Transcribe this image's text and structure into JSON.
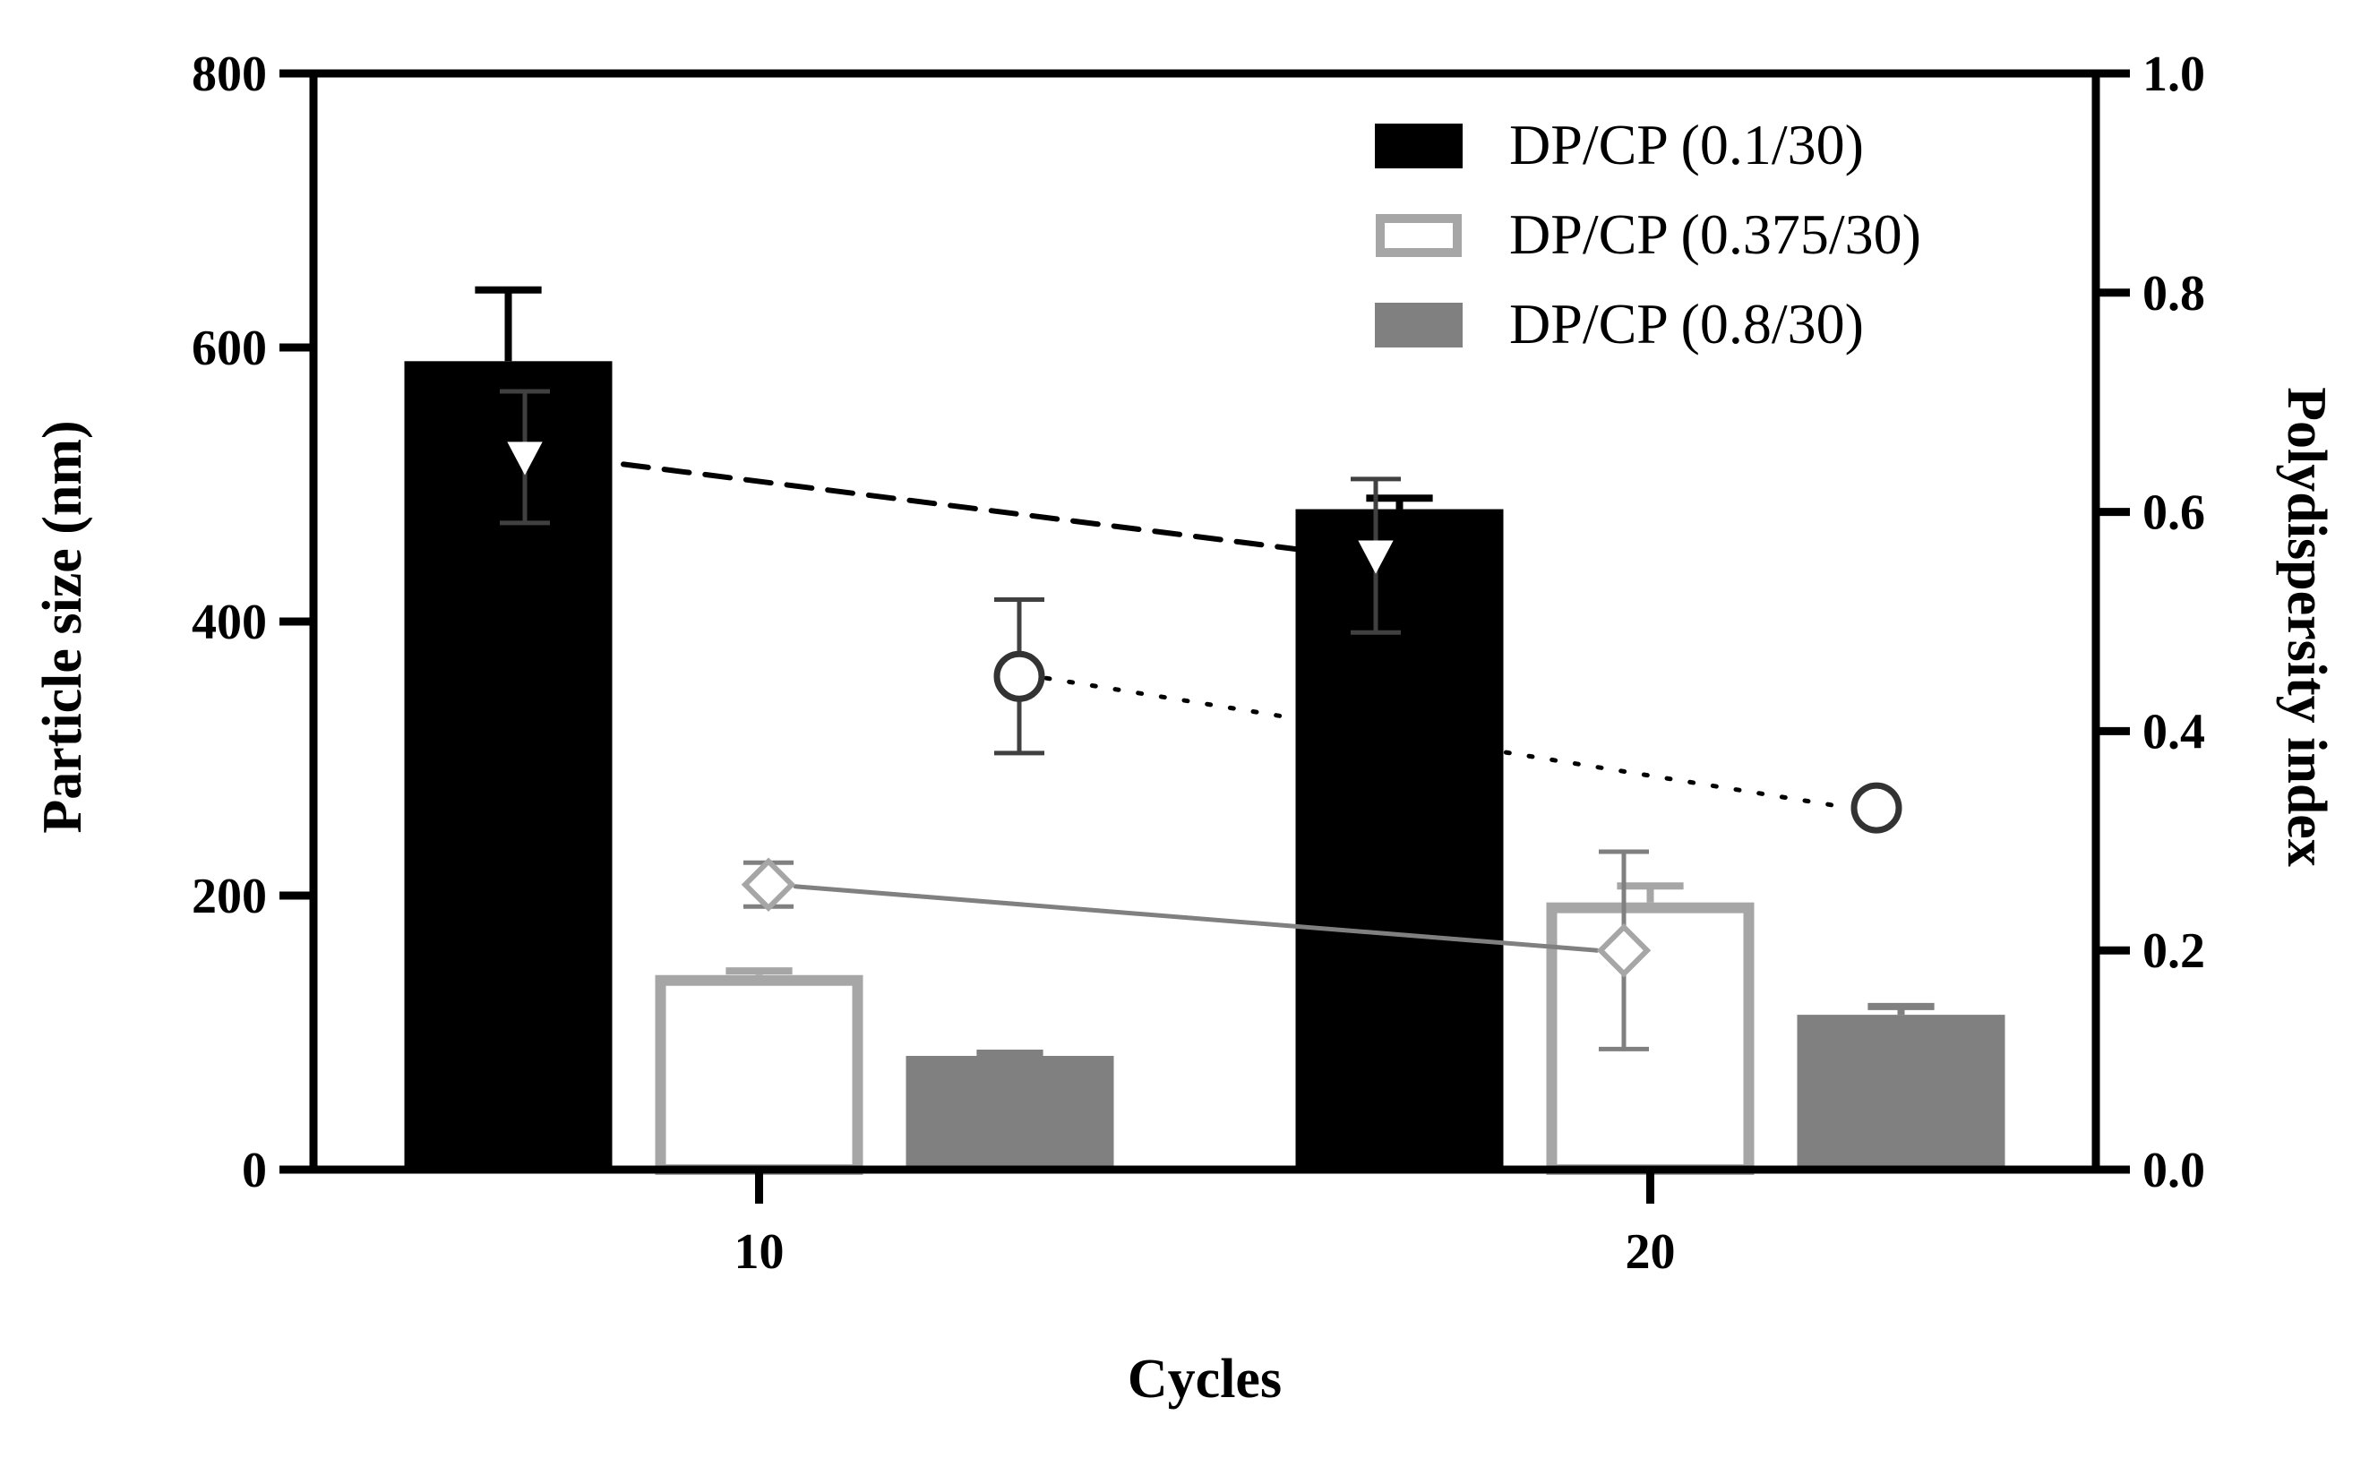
{
  "chart_data": {
    "type": "bar",
    "categories": [
      "10",
      "20"
    ],
    "xlabel": "Cycles",
    "ylabel": "Particle size (nm)",
    "y2label": "Polydispersity index",
    "ylim": [
      0,
      800
    ],
    "y2lim": [
      0,
      1.0
    ],
    "yticks": [
      "0",
      "200",
      "400",
      "600",
      "800"
    ],
    "y2ticks": [
      "0.0",
      "0.2",
      "0.4",
      "0.6",
      "0.8",
      "1.0"
    ],
    "legend_position": "top-right",
    "series": [
      {
        "name": "DP/CP (0.1/30)",
        "style": "filled",
        "color": "#000000",
        "values": [
          590,
          482
        ],
        "errors": [
          52,
          8
        ],
        "pdi": [
          0.65,
          0.56
        ],
        "pdi_errors": [
          0.06,
          0.07
        ],
        "pdi_marker": "triangle-down",
        "pdi_line": "dashed"
      },
      {
        "name": "DP/CP (0.375/30)",
        "style": "outline",
        "color": "#a6a6a6",
        "values": [
          142,
          195
        ],
        "errors": [
          3,
          12
        ],
        "pdi": [
          0.26,
          0.2
        ],
        "pdi_errors": [
          0.02,
          0.09
        ],
        "pdi_marker": "diamond",
        "pdi_line": "solid"
      },
      {
        "name": "DP/CP (0.8/30)",
        "style": "filled",
        "color": "#808080",
        "values": [
          83,
          113
        ],
        "errors": [
          2,
          6
        ],
        "pdi": [
          0.45,
          0.33
        ],
        "pdi_errors": [
          0.07,
          0.0
        ],
        "pdi_marker": "circle",
        "pdi_line": "dotted"
      }
    ]
  }
}
